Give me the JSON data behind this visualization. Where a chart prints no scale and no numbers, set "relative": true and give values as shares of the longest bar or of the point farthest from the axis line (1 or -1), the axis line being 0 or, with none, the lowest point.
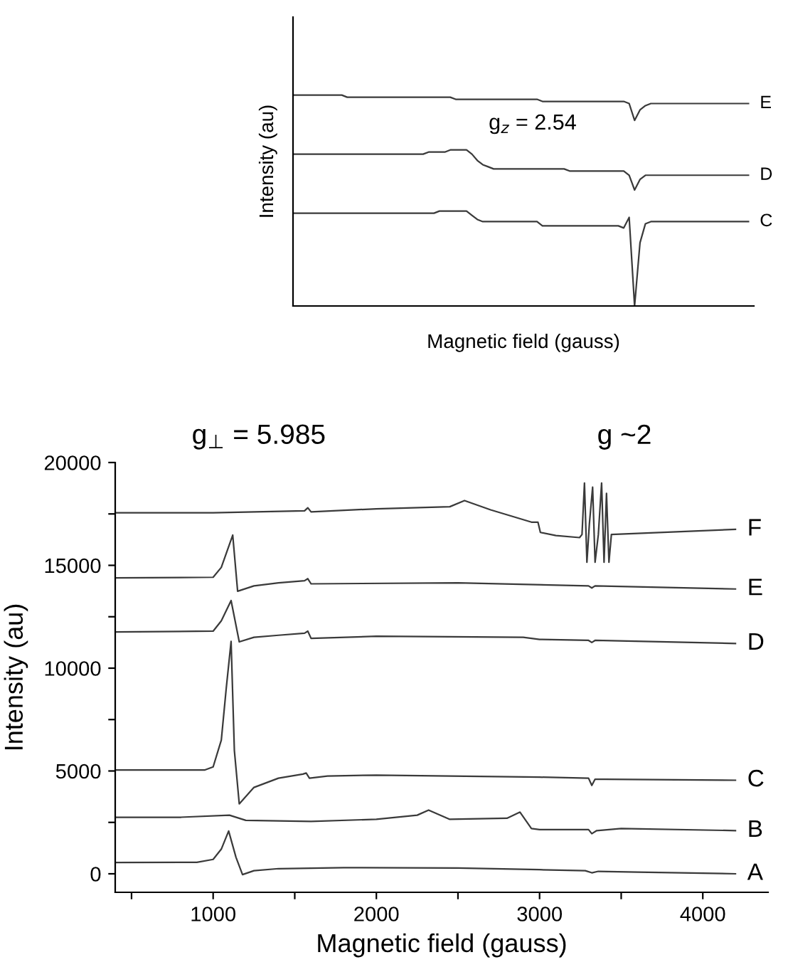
{
  "chart_data": [
    {
      "type": "line",
      "relative": true,
      "xlabel": "Magnetic field (gauss)",
      "ylabel": "Intensity (au)",
      "annotations": [
        "g$_{z}$ = 2.54"
      ],
      "grid": false,
      "legend": false,
      "categories": [
        null,
        null,
        null,
        null,
        null,
        null,
        null,
        null,
        null,
        null,
        null,
        null,
        null,
        null,
        null,
        null,
        null,
        null,
        null,
        null,
        null,
        null,
        null,
        null,
        null,
        null,
        null,
        null,
        null,
        null,
        null,
        null,
        null,
        null,
        null,
        null,
        null,
        null,
        null,
        null,
        null,
        null,
        null,
        null,
        null,
        null,
        null,
        null,
        null,
        null,
        null,
        null,
        null,
        null,
        null,
        null,
        null,
        null,
        null,
        null,
        null,
        null,
        null,
        null,
        null,
        null,
        null,
        null,
        null,
        null,
        null,
        null,
        null,
        null,
        null,
        null,
        null,
        null,
        null,
        null,
        null,
        null,
        null,
        null,
        null
      ],
      "series": [
        {
          "name": "E",
          "color": "#3a3a3a",
          "values": [
            1,
            1,
            1,
            1,
            1,
            1,
            1,
            1,
            1,
            1,
            0.99,
            0.99,
            0.99,
            0.99,
            0.99,
            0.99,
            0.99,
            0.99,
            0.99,
            0.99,
            0.99,
            0.99,
            0.99,
            0.99,
            0.99,
            0.99,
            0.99,
            0.99,
            0.99,
            0.99,
            0.98,
            0.98,
            0.98,
            0.98,
            0.98,
            0.98,
            0.98,
            0.98,
            0.98,
            0.98,
            0.98,
            0.98,
            0.98,
            0.98,
            0.98,
            0.98,
            0.97,
            0.97,
            0.97,
            0.97,
            0.97,
            0.97,
            0.97,
            0.97,
            0.97,
            0.97,
            0.97,
            0.97,
            0.97,
            0.97,
            0.97,
            0.97,
            0.96,
            0.88,
            0.93,
            0.95,
            0.96,
            0.96,
            0.96,
            0.96,
            0.96,
            0.96,
            0.96,
            0.96,
            0.96,
            0.96,
            0.96,
            0.96,
            0.96,
            0.96,
            0.96,
            0.96,
            0.96,
            0.96,
            0.96
          ]
        },
        {
          "name": "D",
          "color": "#3a3a3a",
          "values": [
            0.72,
            0.72,
            0.72,
            0.72,
            0.72,
            0.72,
            0.72,
            0.72,
            0.72,
            0.72,
            0.72,
            0.72,
            0.72,
            0.72,
            0.72,
            0.72,
            0.72,
            0.72,
            0.72,
            0.72,
            0.72,
            0.72,
            0.72,
            0.72,
            0.72,
            0.73,
            0.73,
            0.73,
            0.73,
            0.74,
            0.74,
            0.74,
            0.74,
            0.72,
            0.69,
            0.67,
            0.66,
            0.65,
            0.65,
            0.65,
            0.65,
            0.65,
            0.65,
            0.65,
            0.65,
            0.65,
            0.65,
            0.65,
            0.65,
            0.65,
            0.65,
            0.64,
            0.64,
            0.64,
            0.64,
            0.64,
            0.64,
            0.64,
            0.64,
            0.64,
            0.64,
            0.64,
            0.62,
            0.55,
            0.6,
            0.62,
            0.62,
            0.62,
            0.62,
            0.62,
            0.62,
            0.62,
            0.62,
            0.62,
            0.62,
            0.62,
            0.62,
            0.62,
            0.62,
            0.62,
            0.62,
            0.62,
            0.62,
            0.62,
            0.62
          ]
        },
        {
          "name": "C",
          "color": "#3a3a3a",
          "values": [
            0.44,
            0.44,
            0.44,
            0.44,
            0.44,
            0.44,
            0.44,
            0.44,
            0.44,
            0.44,
            0.44,
            0.44,
            0.44,
            0.44,
            0.44,
            0.44,
            0.44,
            0.44,
            0.44,
            0.44,
            0.44,
            0.44,
            0.44,
            0.44,
            0.44,
            0.44,
            0.44,
            0.45,
            0.45,
            0.45,
            0.45,
            0.45,
            0.45,
            0.43,
            0.41,
            0.4,
            0.4,
            0.4,
            0.4,
            0.4,
            0.4,
            0.4,
            0.4,
            0.4,
            0.4,
            0.4,
            0.38,
            0.38,
            0.38,
            0.38,
            0.38,
            0.38,
            0.38,
            0.38,
            0.38,
            0.38,
            0.38,
            0.38,
            0.38,
            0.38,
            0.38,
            0.37,
            0.42,
            0.0,
            0.3,
            0.39,
            0.4,
            0.4,
            0.4,
            0.4,
            0.4,
            0.4,
            0.4,
            0.4,
            0.4,
            0.4,
            0.4,
            0.4,
            0.4,
            0.4,
            0.4,
            0.4,
            0.4,
            0.4,
            0.4
          ]
        }
      ]
    },
    {
      "type": "line",
      "xlabel": "Magnetic field (gauss)",
      "ylabel": "Intensity (au)",
      "annotations": [
        "g$_{⊥}$ = 5.985",
        "g ~2"
      ],
      "grid": false,
      "legend": false,
      "xlim": [
        400,
        4400
      ],
      "ylim": [
        -900,
        20000
      ],
      "xticks": [
        {
          "value": 500,
          "label": null
        },
        1000,
        {
          "value": 1500,
          "label": null
        },
        2000,
        {
          "value": 2500,
          "label": null
        },
        3000,
        {
          "value": 3500,
          "label": null
        },
        4000
      ],
      "yticks": [
        0,
        {
          "value": 2500,
          "label": null
        },
        5000,
        {
          "value": 7500,
          "label": null
        },
        10000,
        {
          "value": 12500,
          "label": null
        },
        15000,
        {
          "value": 17500,
          "label": null
        },
        20000
      ],
      "series": [
        {
          "name": "F",
          "color": "#3a3a3a",
          "x": [
            400,
            1000,
            1560,
            1580,
            1600,
            2000,
            2450,
            2540,
            2700,
            2950,
            2990,
            3005,
            3100,
            3245,
            3260,
            3275,
            3290,
            3305,
            3325,
            3340,
            3360,
            3380,
            3395,
            3410,
            3425,
            3440,
            3600,
            4200
          ],
          "values": [
            17560,
            17560,
            17650,
            17800,
            17600,
            17750,
            17850,
            18150,
            17700,
            17100,
            17100,
            16600,
            16450,
            16350,
            16500,
            19000,
            15150,
            17000,
            18800,
            15150,
            16500,
            19000,
            15150,
            18500,
            15150,
            16500,
            16550,
            16750
          ]
        },
        {
          "name": "E",
          "color": "#3a3a3a",
          "x": [
            400,
            1000,
            1050,
            1120,
            1150,
            1250,
            1400,
            1560,
            1580,
            1600,
            2500,
            3300,
            3320,
            3340,
            4200
          ],
          "values": [
            14390,
            14420,
            14900,
            16470,
            13740,
            14000,
            14150,
            14250,
            14350,
            14100,
            14150,
            14000,
            13900,
            14000,
            13850
          ]
        },
        {
          "name": "D",
          "color": "#3a3a3a",
          "x": [
            400,
            1000,
            1050,
            1110,
            1160,
            1250,
            1400,
            1560,
            1580,
            1600,
            2000,
            2900,
            3000,
            3300,
            3320,
            3340,
            4200
          ],
          "values": [
            11760,
            11800,
            12300,
            13290,
            11280,
            11500,
            11600,
            11700,
            11800,
            11450,
            11550,
            11500,
            11400,
            11350,
            11250,
            11350,
            11200
          ]
        },
        {
          "name": "C",
          "color": "#3a3a3a",
          "x": [
            400,
            950,
            1000,
            1050,
            1080,
            1110,
            1130,
            1160,
            1250,
            1400,
            1550,
            1570,
            1590,
            1700,
            2000,
            3000,
            3300,
            3320,
            3340,
            3400,
            4200
          ],
          "values": [
            5050,
            5050,
            5200,
            6500,
            9000,
            11300,
            6000,
            3400,
            4200,
            4650,
            4850,
            4900,
            4650,
            4750,
            4800,
            4700,
            4650,
            4300,
            4600,
            4600,
            4550
          ]
        },
        {
          "name": "B",
          "color": "#3a3a3a",
          "x": [
            400,
            800,
            1100,
            1200,
            1600,
            2000,
            2250,
            2320,
            2450,
            2800,
            2880,
            2950,
            3000,
            3300,
            3320,
            3350,
            3500,
            4200
          ],
          "values": [
            2750,
            2750,
            2850,
            2600,
            2550,
            2650,
            2850,
            3100,
            2650,
            2700,
            3000,
            2200,
            2150,
            2150,
            1950,
            2100,
            2200,
            2100
          ]
        },
        {
          "name": "A",
          "color": "#3a3a3a",
          "x": [
            400,
            900,
            1000,
            1050,
            1095,
            1140,
            1180,
            1250,
            1400,
            1800,
            2500,
            3000,
            3280,
            3320,
            3360,
            3600,
            4200
          ],
          "values": [
            550,
            560,
            700,
            1200,
            2080,
            800,
            -40,
            150,
            250,
            300,
            280,
            200,
            150,
            50,
            120,
            80,
            0
          ]
        }
      ]
    }
  ]
}
